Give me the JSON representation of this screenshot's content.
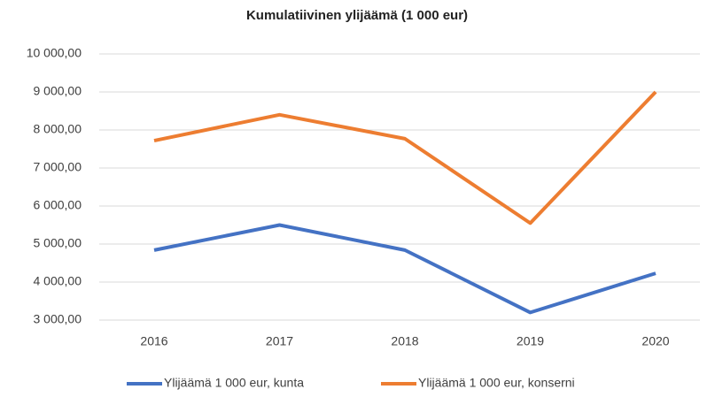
{
  "chart_data": {
    "type": "line",
    "title": "Kumulatiivinen ylijäämä (1 000 eur)",
    "categories": [
      "2016",
      "2017",
      "2018",
      "2019",
      "2020"
    ],
    "series": [
      {
        "name": "Ylijäämä 1 000 eur, kunta",
        "color": "#4472c4",
        "values": [
          4840,
          5500,
          4840,
          3200,
          4230
        ]
      },
      {
        "name": "Ylijäämä 1 000 eur, konserni",
        "color": "#ed7d31",
        "values": [
          7720,
          8400,
          7770,
          5550,
          9000
        ]
      }
    ],
    "ylim": [
      3000,
      10000
    ],
    "yticks": [
      {
        "value": 3000,
        "label": "3 000,00"
      },
      {
        "value": 4000,
        "label": "4 000,00"
      },
      {
        "value": 5000,
        "label": "5 000,00"
      },
      {
        "value": 6000,
        "label": "6 000,00"
      },
      {
        "value": 7000,
        "label": "7 000,00"
      },
      {
        "value": 8000,
        "label": "8 000,00"
      },
      {
        "value": 9000,
        "label": "9 000,00"
      },
      {
        "value": 10000,
        "label": "10 000,00"
      }
    ],
    "grid": true,
    "legend": "bottom"
  }
}
